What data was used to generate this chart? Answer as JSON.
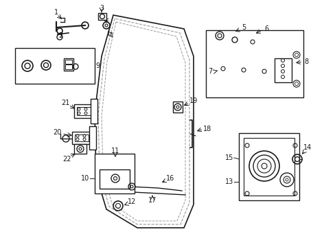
{
  "bg_color": "#ffffff",
  "line_color": "#1a1a1a",
  "gray_color": "#999999",
  "figsize": [
    4.89,
    3.6
  ],
  "dpi": 100,
  "door_outer_x": [
    165,
    148,
    138,
    140,
    155,
    200,
    268,
    282,
    282,
    268,
    165
  ],
  "door_outer_y": [
    338,
    278,
    195,
    105,
    55,
    28,
    28,
    62,
    278,
    318,
    338
  ],
  "door_inner1_x": [
    167,
    152,
    143,
    145,
    159,
    200,
    263,
    276,
    276,
    262,
    167
  ],
  "door_inner1_y": [
    333,
    274,
    193,
    108,
    59,
    33,
    33,
    65,
    273,
    312,
    333
  ],
  "door_inner2_x": [
    169,
    156,
    148,
    150,
    163,
    200,
    258,
    270,
    270,
    257,
    169
  ],
  "door_inner2_y": [
    328,
    270,
    191,
    112,
    63,
    38,
    38,
    68,
    268,
    307,
    328
  ]
}
